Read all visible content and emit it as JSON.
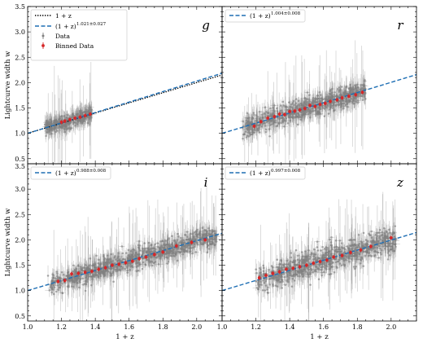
{
  "chart_data": {
    "type": "scatter",
    "xlabel": "1 + z",
    "ylabel": "Lightcurve width w",
    "xlim": [
      1.0,
      2.15
    ],
    "ylim": [
      0.4,
      3.5
    ],
    "x_ticks": [
      "1.0",
      "1.2",
      "1.4",
      "1.6",
      "1.8",
      "2.0"
    ],
    "y_ticks": [
      "0.5",
      "1.0",
      "1.5",
      "2.0",
      "2.5",
      "3.0",
      "3.5"
    ],
    "legend_shared": {
      "reference_label": "1 + z",
      "data_label": "Data",
      "binned_label": "Binned Data"
    },
    "colors": {
      "data": "#808080",
      "binned": "#d62728",
      "fit": "#1f6fb4",
      "reference": "#000000"
    },
    "panels": [
      {
        "band": "g",
        "fit_label": "(1 + z)",
        "fit_exponent": "1.021±0.027",
        "fit_power": 1.021,
        "show_reference": true,
        "data_x_range": [
          1.1,
          1.38
        ],
        "data_center": [
          1.0,
          1.05
        ],
        "data_spread": 0.13,
        "binned": [
          {
            "x": 1.2,
            "y": 1.22
          },
          {
            "x": 1.22,
            "y": 1.24
          },
          {
            "x": 1.25,
            "y": 1.27
          },
          {
            "x": 1.28,
            "y": 1.3
          },
          {
            "x": 1.31,
            "y": 1.32
          },
          {
            "x": 1.34,
            "y": 1.35
          },
          {
            "x": 1.37,
            "y": 1.38
          }
        ]
      },
      {
        "band": "r",
        "fit_label": "(1 + z)",
        "fit_exponent": "1.004±0.008",
        "fit_power": 1.004,
        "show_reference": false,
        "data_x_range": [
          1.12,
          1.85
        ],
        "data_center": [
          1.0,
          1.0
        ],
        "data_spread": 0.2,
        "binned": [
          {
            "x": 1.19,
            "y": 1.14
          },
          {
            "x": 1.23,
            "y": 1.23
          },
          {
            "x": 1.27,
            "y": 1.3
          },
          {
            "x": 1.31,
            "y": 1.33
          },
          {
            "x": 1.34,
            "y": 1.38
          },
          {
            "x": 1.37,
            "y": 1.37
          },
          {
            "x": 1.4,
            "y": 1.43
          },
          {
            "x": 1.43,
            "y": 1.44
          },
          {
            "x": 1.46,
            "y": 1.46
          },
          {
            "x": 1.49,
            "y": 1.49
          },
          {
            "x": 1.52,
            "y": 1.55
          },
          {
            "x": 1.55,
            "y": 1.53
          },
          {
            "x": 1.58,
            "y": 1.57
          },
          {
            "x": 1.61,
            "y": 1.59
          },
          {
            "x": 1.64,
            "y": 1.63
          },
          {
            "x": 1.68,
            "y": 1.66
          },
          {
            "x": 1.71,
            "y": 1.7
          },
          {
            "x": 1.75,
            "y": 1.73
          },
          {
            "x": 1.79,
            "y": 1.76
          },
          {
            "x": 1.83,
            "y": 1.81
          }
        ]
      },
      {
        "band": "i",
        "fit_label": "(1 + z)",
        "fit_exponent": "0.988±0.008",
        "fit_power": 0.988,
        "show_reference": false,
        "data_x_range": [
          1.12,
          2.12
        ],
        "data_center": [
          1.0,
          1.0
        ],
        "data_spread": 0.2,
        "binned": [
          {
            "x": 1.18,
            "y": 1.18
          },
          {
            "x": 1.22,
            "y": 1.2
          },
          {
            "x": 1.26,
            "y": 1.33
          },
          {
            "x": 1.3,
            "y": 1.34
          },
          {
            "x": 1.34,
            "y": 1.36
          },
          {
            "x": 1.38,
            "y": 1.38
          },
          {
            "x": 1.42,
            "y": 1.42
          },
          {
            "x": 1.46,
            "y": 1.45
          },
          {
            "x": 1.5,
            "y": 1.5
          },
          {
            "x": 1.54,
            "y": 1.52
          },
          {
            "x": 1.58,
            "y": 1.55
          },
          {
            "x": 1.62,
            "y": 1.58
          },
          {
            "x": 1.66,
            "y": 1.63
          },
          {
            "x": 1.7,
            "y": 1.66
          },
          {
            "x": 1.75,
            "y": 1.71
          },
          {
            "x": 1.8,
            "y": 1.76
          },
          {
            "x": 1.88,
            "y": 1.88
          },
          {
            "x": 1.97,
            "y": 1.95
          },
          {
            "x": 2.05,
            "y": 2.0
          }
        ]
      },
      {
        "band": "z",
        "fit_label": "(1 + z)",
        "fit_exponent": "0.997±0.008",
        "fit_power": 0.997,
        "show_reference": false,
        "data_x_range": [
          1.2,
          2.03
        ],
        "data_center": [
          1.0,
          1.0
        ],
        "data_spread": 0.25,
        "binned": [
          {
            "x": 1.22,
            "y": 1.25
          },
          {
            "x": 1.26,
            "y": 1.3
          },
          {
            "x": 1.3,
            "y": 1.34
          },
          {
            "x": 1.34,
            "y": 1.37
          },
          {
            "x": 1.38,
            "y": 1.42
          },
          {
            "x": 1.42,
            "y": 1.44
          },
          {
            "x": 1.46,
            "y": 1.47
          },
          {
            "x": 1.5,
            "y": 1.5
          },
          {
            "x": 1.54,
            "y": 1.54
          },
          {
            "x": 1.58,
            "y": 1.57
          },
          {
            "x": 1.62,
            "y": 1.6
          },
          {
            "x": 1.66,
            "y": 1.66
          },
          {
            "x": 1.71,
            "y": 1.69
          },
          {
            "x": 1.76,
            "y": 1.75
          },
          {
            "x": 1.82,
            "y": 1.8
          },
          {
            "x": 1.88,
            "y": 1.87
          },
          {
            "x": 2.0,
            "y": 2.04
          }
        ]
      }
    ]
  }
}
